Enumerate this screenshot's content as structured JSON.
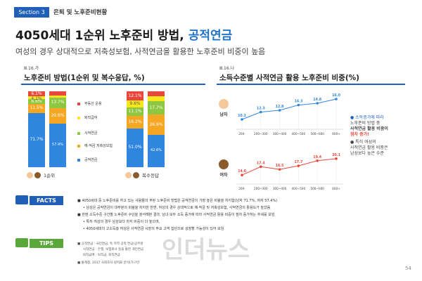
{
  "header": {
    "section_badge": "Section 3",
    "section_title": "은퇴 및 노후준비현황"
  },
  "title": {
    "main": "4050세대 1순위 노후준비 방법, ",
    "highlight": "공적연금",
    "subtitle": "여성의 경우 상대적으로 저축성보험, 사적연금을 활용한 노후준비 비중이 높음"
  },
  "left_chart_header": {
    "code": "Ⅲ.16.가",
    "title": "노후준비 방법(1순위 및 복수응답, %)"
  },
  "right_chart_header": {
    "code": "Ⅲ.16.나",
    "title": "소득수준별 사적연금 활용 노후준비 비중(%)"
  },
  "colors": {
    "blue": "#2e86de",
    "orange": "#f5a623",
    "green": "#8dc63f",
    "yellow": "#f8e71c",
    "red": "#e8473b",
    "navy": "#1f5fb8"
  },
  "chart_data": [
    {
      "type": "bar",
      "stacked": true,
      "groups": [
        "1순위",
        "복수응답"
      ],
      "categories": [
        "남",
        "여",
        "남",
        "여"
      ],
      "series": [
        {
          "name": "공적연금",
          "values": [
            71.7,
            57.4,
            51.0,
            42.6
          ]
        },
        {
          "name": "예·적금 저축성보험",
          "values": [
            11.5,
            20.6,
            16.2,
            26.6
          ]
        },
        {
          "name": "사적연금",
          "values": [
            6.6,
            13.7,
            11.1,
            17.7
          ]
        },
        {
          "name": "퇴직급여",
          "values": [
            4.1,
            2.9,
            9.6,
            6.4
          ]
        },
        {
          "name": "부동산 운용",
          "values": [
            6.1,
            5.4,
            12.1,
            6.7
          ]
        }
      ],
      "value_labels": [
        [
          "71.7%",
          "11.5%",
          "6.6%",
          "4.1%",
          "6.1%"
        ],
        [
          "57.4%",
          "20.6%",
          "13.7%",
          "",
          ""
        ],
        [
          "51.0%",
          "16.2%",
          "11.1%",
          "9.6%",
          "12.1%"
        ],
        [
          "42.6%",
          "26.6%",
          "17.7%",
          "",
          ""
        ]
      ]
    },
    {
      "type": "line",
      "categories": [
        "200-",
        "200~300",
        "300~400",
        "400~500",
        "500~600",
        "600+"
      ],
      "series": [
        {
          "name": "남자",
          "values": [
            10.2,
            12.3,
            12.8,
            14.3,
            14.8,
            16.0
          ]
        },
        {
          "name": "여자",
          "values": [
            14.6,
            17.4,
            16.5,
            17.7,
            19.4,
            20.1
          ]
        }
      ]
    }
  ],
  "left_legend": [
    "부동산 운용",
    "퇴직급여",
    "사적연금",
    "예·적금 저축성보험",
    "공적연금"
  ],
  "left_group_labels": [
    "1순위",
    "복수응답"
  ],
  "right_labels": {
    "male": "남자",
    "female": "여자"
  },
  "note": {
    "lines": [
      "소득증가에 따라",
      "노후준비 방법 중",
      "사적연금 활용 비중이",
      "점차 증가!",
      "특히 여성의",
      "사적연금 활용 비중은",
      "남성보다 높은 수준"
    ]
  },
  "facts": {
    "label": "FACTS",
    "lines": [
      "4050세대 중 노후준비를 하고 있는 사람들의 주된 노후준비 방법은 공적연금이 가장 높은 비율을 차지함(남자 71.7%, 여자 57.4%)",
      "남성은 공적연금이 대부분의 비율을 차지한 반면, 여성의 경우 상대적으로 예·적금 및 저축성보험, 사적연금의 활용도가 높았음",
      "한편 소득수준 구간별 노후준비 수단을 분석해본 결과, 남녀 모두 소득 증가에 따라 사적연금 활용 비중이 점차 증가하는 추세를 보임",
      "특히 여성의 경우 남성보다 차지 비중이 더 높으며,",
      "4050세대의 고소득층 여성은 사적연금 시장의 주요 고객 집단으로 성장할 가능성이 있어 보임"
    ]
  },
  "tips": {
    "label": "TIPS",
    "lines": [
      "공적연금 : 국민연금, 특 지역 공적 연금(공무원",
      "사적연금 : 은행, 보험회사 등을 통한 개인연금",
      "퇴직급여 : 퇴직금, 퇴직연금",
      "통계청, 2017 사회조사 원자료 분석(가구만"
    ]
  },
  "watermark": "인더뉴스",
  "page_number": "54"
}
